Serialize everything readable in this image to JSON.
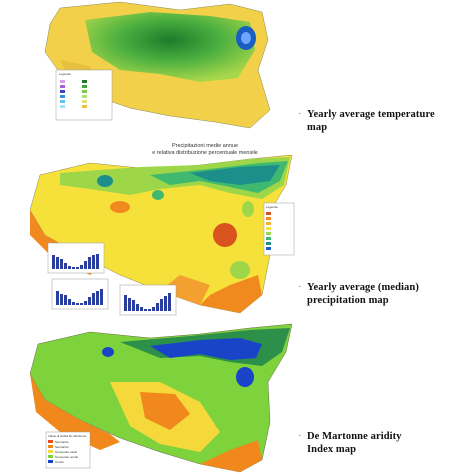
{
  "panels": [
    {
      "caption_lines": [
        "Yearly average temperature",
        "map"
      ],
      "legend_title": "Legenda",
      "colors": {
        "sea": "#ffffff",
        "low": "#f7d84a",
        "mid": "#9fd347",
        "high": "#3aa83c",
        "peak": "#1e7a2a",
        "accent": "#2f6fd6"
      }
    },
    {
      "caption_lines": [
        "Yearly average (median)",
        "precipitation map"
      ],
      "title_lines": [
        "Precipitazioni medie annue",
        "e relativa distribuzione percentuale mensile"
      ],
      "legend_title": "Legenda",
      "colors": {
        "dry": "#f08a1f",
        "mid": "#f6e13a",
        "wet": "#9ed64a",
        "wetter": "#3fb870",
        "wettest": "#1d8f8a",
        "accent": "#d9531e"
      }
    },
    {
      "caption_lines": [
        "De Martonne aridity",
        "Index map"
      ],
      "legend_title": "Indice di aridità De Martonne",
      "legend_items": [
        "Semiarido",
        "Semiarido",
        "Temperato caldo",
        "Temperato umido",
        "Umido"
      ],
      "colors": {
        "semiarid": "#f0881c",
        "temperate": "#f5d83a",
        "humid": "#7ed23c",
        "wet": "#2c8f4a",
        "very_wet": "#1a44c8"
      }
    }
  ]
}
